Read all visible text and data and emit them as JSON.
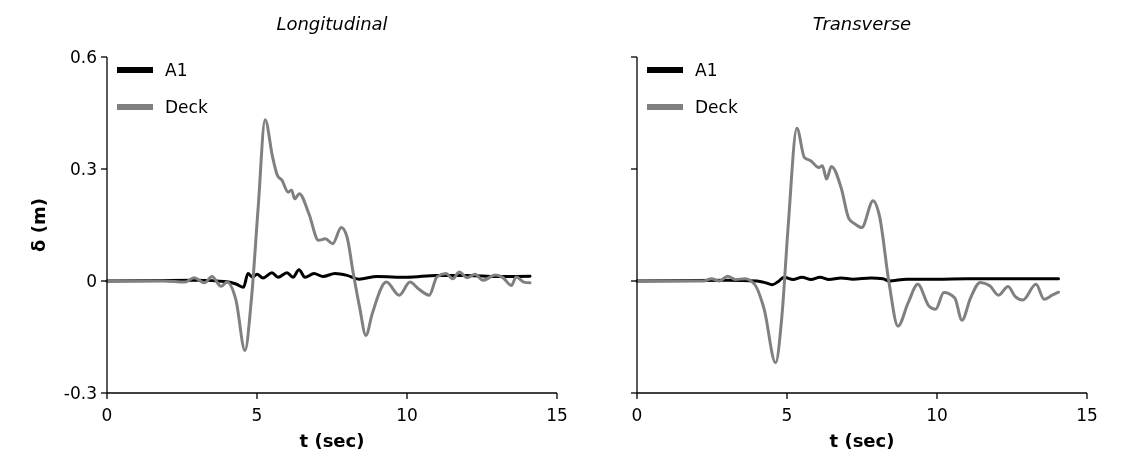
{
  "chart_data": [
    {
      "type": "line",
      "title": "Longitudinal",
      "xlabel": "t (sec)",
      "ylabel": "δ (m)",
      "xlim": [
        0,
        15
      ],
      "xticks": [
        0,
        5,
        10,
        15
      ],
      "ylim": [
        -0.3,
        0.6
      ],
      "yticks": [
        -0.3,
        0,
        0.3,
        0.6
      ],
      "grid": false,
      "legend": "top left",
      "marker": "none",
      "line_style": "solid",
      "series": [
        {
          "name": "A1",
          "color": "#000000",
          "x": [
            0,
            3.0,
            4.0,
            4.3,
            4.55,
            4.7,
            4.85,
            5.0,
            5.2,
            5.5,
            5.7,
            6.0,
            6.2,
            6.4,
            6.6,
            6.9,
            7.2,
            7.6,
            8.0,
            8.4,
            9.0,
            10.0,
            11.0,
            12.0,
            13.0,
            14.1
          ],
          "values": [
            0,
            0.002,
            -0.002,
            -0.008,
            -0.017,
            0.02,
            0.01,
            0.018,
            0.008,
            0.022,
            0.01,
            0.022,
            0.01,
            0.03,
            0.01,
            0.02,
            0.012,
            0.02,
            0.015,
            0.005,
            0.012,
            0.01,
            0.015,
            0.015,
            0.012,
            0.013
          ]
        },
        {
          "name": "Deck",
          "color": "#808080",
          "x": [
            0,
            1.88,
            2.6,
            2.9,
            3.25,
            3.5,
            3.8,
            4.0,
            4.3,
            4.6,
            4.81,
            5.04,
            5.27,
            5.52,
            5.68,
            5.83,
            6.04,
            6.15,
            6.26,
            6.41,
            6.73,
            7.05,
            7.28,
            7.52,
            7.81,
            8.0,
            8.21,
            8.42,
            8.63,
            8.84,
            9.31,
            9.74,
            10.1,
            10.37,
            10.74,
            11.0,
            11.3,
            11.53,
            11.74,
            12.0,
            12.27,
            12.53,
            12.95,
            13.2,
            13.48,
            13.64,
            13.9,
            14.1
          ],
          "values": [
            0,
            0,
            -0.003,
            0.009,
            -0.005,
            0.012,
            -0.014,
            -0.003,
            -0.052,
            -0.186,
            -0.052,
            0.198,
            0.432,
            0.332,
            0.283,
            0.27,
            0.238,
            0.243,
            0.22,
            0.234,
            0.18,
            0.109,
            0.113,
            0.1,
            0.143,
            0.118,
            0.02,
            -0.07,
            -0.146,
            -0.088,
            -0.003,
            -0.038,
            -0.003,
            -0.02,
            -0.038,
            0.011,
            0.02,
            0.006,
            0.024,
            0.009,
            0.018,
            0.002,
            0.016,
            0.009,
            -0.012,
            0.011,
            -0.003,
            -0.005
          ]
        }
      ]
    },
    {
      "type": "line",
      "title": "Transverse",
      "xlabel": "t (sec)",
      "xlim": [
        0,
        15
      ],
      "xticks": [
        0,
        5,
        10,
        15
      ],
      "ylim": [
        -0.3,
        0.6
      ],
      "yticks": [
        -0.3,
        0,
        0.3,
        0.6
      ],
      "tick_labels": "x",
      "grid": false,
      "legend": "top left",
      "marker": "none",
      "line_style": "solid",
      "series": [
        {
          "name": "A1",
          "color": "#000000",
          "x": [
            0,
            3.0,
            4.0,
            4.3,
            4.5,
            4.7,
            4.9,
            5.2,
            5.5,
            5.8,
            6.1,
            6.4,
            6.8,
            7.2,
            7.8,
            8.2,
            8.4,
            9.0,
            10.0,
            11.0,
            12.0,
            13.0,
            14.05
          ],
          "values": [
            0,
            0.002,
            0,
            -0.005,
            -0.01,
            -0.002,
            0.01,
            0.004,
            0.01,
            0.004,
            0.01,
            0.004,
            0.008,
            0.005,
            0.008,
            0.006,
            0,
            0.005,
            0.005,
            0.006,
            0.006,
            0.006,
            0.006
          ]
        },
        {
          "name": "Deck",
          "color": "#808080",
          "x": [
            0,
            2.22,
            2.48,
            2.75,
            3.02,
            3.28,
            3.6,
            3.92,
            4.24,
            4.62,
            4.83,
            5.04,
            5.33,
            5.58,
            5.79,
            6.06,
            6.18,
            6.32,
            6.48,
            6.8,
            7.07,
            7.28,
            7.49,
            7.87,
            8.08,
            8.4,
            8.7,
            9.04,
            9.36,
            9.73,
            9.95,
            10.23,
            10.59,
            10.83,
            11.12,
            11.44,
            11.76,
            12.05,
            12.37,
            12.61,
            12.86,
            13.3,
            13.57,
            13.84,
            14.05
          ],
          "values": [
            0,
            0,
            0.006,
            0,
            0.013,
            0.004,
            0.006,
            -0.009,
            -0.076,
            -0.219,
            -0.094,
            0.148,
            0.409,
            0.331,
            0.322,
            0.304,
            0.309,
            0.273,
            0.307,
            0.251,
            0.166,
            0.152,
            0.143,
            0.215,
            0.175,
            -0.004,
            -0.121,
            -0.058,
            -0.009,
            -0.067,
            -0.076,
            -0.031,
            -0.045,
            -0.105,
            -0.045,
            -0.004,
            -0.013,
            -0.038,
            -0.015,
            -0.042,
            -0.051,
            -0.009,
            -0.049,
            -0.038,
            -0.03
          ]
        }
      ]
    }
  ]
}
